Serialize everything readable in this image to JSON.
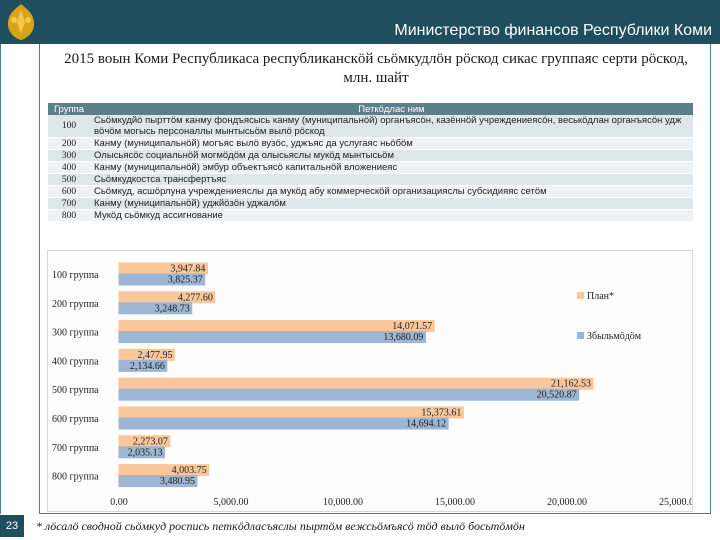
{
  "header": {
    "organization": "Министерство финансов Республики Коми",
    "page_title": "2015 воын Коми Республикаса республиканскӧй сьӧмкудлӧн рӧскод сикас группаяс серти рӧскод, млн. шайт"
  },
  "table": {
    "columns": [
      "Группа",
      "Петкӧдлас ним"
    ],
    "rows": [
      {
        "code": "100",
        "name": "Сьӧмкудйӧ пырттӧм канму фондъясысь канму (муниципальнӧй) органъясӧн, казённӧй учреждениеясӧн, веськӧдлан органъясӧн удж вӧчӧм могысь персоналлы мынтысьӧм вылӧ рӧскод"
      },
      {
        "code": "200",
        "name": "Канму (муниципальнӧй) могъяс вылӧ вузӧс, уджъяс да услугаяс ньӧбӧм"
      },
      {
        "code": "300",
        "name": "Олысьясӧс социальнӧй могмӧдӧм да олысьяслы мукӧд мынтысьӧм"
      },
      {
        "code": "400",
        "name": "Канму (муниципальнӧй) эмбур объектъясӧ капитальнӧй вложениеяс"
      },
      {
        "code": "500",
        "name": "Сьӧмкудкостса трансфертъяс"
      },
      {
        "code": "600",
        "name": "Сьӧмкуд, асшӧрлуна учреждениеяслы да мукӧд абу коммерческӧй организацияслы субсидияяс сетӧм"
      },
      {
        "code": "700",
        "name": "Канму (муниципальнӧй) уджйӧзӧн уджалӧм"
      },
      {
        "code": "800",
        "name": "Мукӧд сьӧмкуд ассигнование"
      }
    ]
  },
  "chart_data": {
    "type": "bar",
    "orientation": "horizontal",
    "categories": [
      "100 группа",
      "200 группа",
      "300 группа",
      "400 группа",
      "500 группа",
      "600 группа",
      "700 группа",
      "800 группа"
    ],
    "series": [
      {
        "name": "План*",
        "color": "#f9c79a",
        "values": [
          3947.84,
          4277.6,
          14071.57,
          2477.95,
          21162.53,
          15373.61,
          2273.07,
          4003.75
        ],
        "labels": [
          "3,947.84",
          "4,277.60",
          "14,071.57",
          "2,477.95",
          "21,162.53",
          "15,373.61",
          "2,273.07",
          "4,003.75"
        ]
      },
      {
        "name": "Збыльмӧдӧм",
        "color": "#9db6d3",
        "values": [
          3825.37,
          3248.73,
          13680.09,
          2134.66,
          20520.87,
          14694.12,
          2035.13,
          3480.95
        ],
        "labels": [
          "3,825.37",
          "3,248.73",
          "13,680.09",
          "2,134.66",
          "20,520.87",
          "14,694.12",
          "2,035.13",
          "3,480.95"
        ]
      }
    ],
    "xlim": [
      0,
      25000
    ],
    "xticks": [
      0,
      5000,
      10000,
      15000,
      20000,
      25000
    ],
    "xtick_labels": [
      "0.00",
      "5,000.00",
      "10,000.00",
      "15,000.00",
      "20,000.00",
      "25,000.00"
    ],
    "legend_position": "right",
    "grid": false
  },
  "footer": {
    "page_number": "23",
    "footnote": "* лӧсалӧ сводной сьӧмкуд роспись петкӧдласъяслы пыртӧм вежсьӧмъясӧ тӧд вылӧ босьтӧмӧн"
  },
  "colors": {
    "header": "#1f4e5f",
    "table_header": "#5d7f8c",
    "plan": "#f9c79a",
    "actual": "#9db6d3"
  }
}
